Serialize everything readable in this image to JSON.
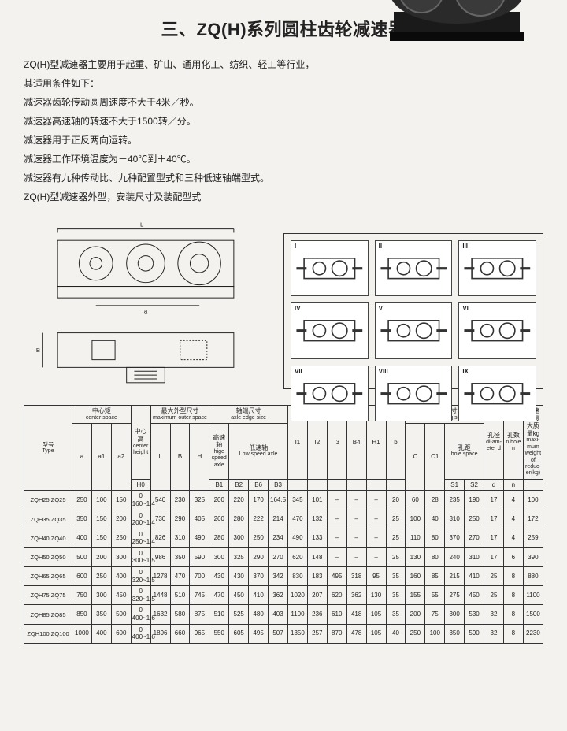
{
  "title": "三、ZQ(H)系列圆柱齿轮减速器",
  "intro": [
    "ZQ(H)型减速器主要用于起重、矿山、通用化工、纺织、轻工等行业，",
    "其适用条件如下：",
    "减速器齿轮传动圆周速度不大于4米／秒。",
    "减速器高速轴的转速不大于1500转／分。",
    "减速器用于正反两向运转。",
    "减速器工作环境温度为－40℃到＋40℃。",
    "减速器有九种传动比、九种配置型式和三种低速轴端型式。",
    "ZQ(H)型减速器外型，安装尺寸及装配型式"
  ],
  "config_labels": [
    "I",
    "II",
    "III",
    "IV",
    "V",
    "VI",
    "VII",
    "VIII",
    "IX"
  ],
  "headers": {
    "type": {
      "zh": "型号",
      "en": "Type"
    },
    "center_space": {
      "zh": "中心矩",
      "en": "center space"
    },
    "center_height": {
      "zh": "中心高",
      "en": "center height"
    },
    "max_outer": {
      "zh": "最大外型尺寸",
      "en": "maximum outer space"
    },
    "axle_edge": {
      "zh": "轴端尺寸",
      "en": "axle edge size"
    },
    "hige_axle": {
      "zh": "高速轴",
      "en": "hige speed axle"
    },
    "low_axle": {
      "zh": "低速轴",
      "en": "Low speed axle"
    },
    "assembling": {
      "zh": "安装尺寸",
      "en": "assembling size"
    },
    "hole_space": {
      "zh": "孔距",
      "en": "hole space"
    },
    "hole_dia": {
      "zh": "孔径",
      "en": "di-am-eter d"
    },
    "hole_n": {
      "zh": "孔数",
      "en": "n hole n"
    },
    "weight": {
      "zh": "减速器最大质量kg",
      "en": "maxi-mum weight of reduc-er(kg)"
    },
    "sub": [
      "a",
      "a1",
      "a2",
      "H0",
      "L",
      "B",
      "H",
      "B1",
      "B2",
      "B6",
      "B3",
      "I1",
      "I2",
      "I3",
      "B4",
      "H1",
      "b",
      "C",
      "C1",
      "S1",
      "S2",
      "d",
      "n",
      "kg"
    ]
  },
  "rows": [
    {
      "type": "ZQH25 ZQ25",
      "a": "250",
      "a1": "100",
      "a2": "150",
      "H0": "0\n160~1.4",
      "L": "540",
      "B": "230",
      "H": "325",
      "B1": "200",
      "B2": "220",
      "B6": "170",
      "B3": "164.5",
      "I1": "345",
      "I2": "101",
      "I3": "–",
      "B4": "–",
      "H1": "–",
      "b": "20",
      "C": "60",
      "C1": "28",
      "S1": "235",
      "S2": "190",
      "d": "17",
      "n": "4",
      "kg": "100"
    },
    {
      "type": "ZQH35 ZQ35",
      "a": "350",
      "a1": "150",
      "a2": "200",
      "H0": "0\n200~1.4",
      "L": "730",
      "B": "290",
      "H": "405",
      "B1": "260",
      "B2": "280",
      "B6": "222",
      "B3": "214",
      "I1": "470",
      "I2": "132",
      "I3": "–",
      "B4": "–",
      "H1": "–",
      "b": "25",
      "C": "100",
      "C1": "40",
      "S1": "310",
      "S2": "250",
      "d": "17",
      "n": "4",
      "kg": "172"
    },
    {
      "type": "ZQH40 ZQ40",
      "a": "400",
      "a1": "150",
      "a2": "250",
      "H0": "0\n250~1.4",
      "L": "826",
      "B": "310",
      "H": "490",
      "B1": "280",
      "B2": "300",
      "B6": "250",
      "B3": "234",
      "I1": "490",
      "I2": "133",
      "I3": "–",
      "B4": "–",
      "H1": "–",
      "b": "25",
      "C": "110",
      "C1": "80",
      "S1": "370",
      "S2": "270",
      "d": "17",
      "n": "4",
      "kg": "259"
    },
    {
      "type": "ZQH50 ZQ50",
      "a": "500",
      "a1": "200",
      "a2": "300",
      "H0": "0\n300~1.5",
      "L": "986",
      "B": "350",
      "H": "590",
      "B1": "300",
      "B2": "325",
      "B6": "290",
      "B3": "270",
      "I1": "620",
      "I2": "148",
      "I3": "–",
      "B4": "–",
      "H1": "–",
      "b": "25",
      "C": "130",
      "C1": "80",
      "S1": "240",
      "S2": "310",
      "d": "17",
      "n": "6",
      "kg": "390"
    },
    {
      "type": "ZQH65 ZQ65",
      "a": "600",
      "a1": "250",
      "a2": "400",
      "H0": "0\n320~1.5",
      "L": "1278",
      "B": "470",
      "H": "700",
      "B1": "430",
      "B2": "430",
      "B6": "370",
      "B3": "342",
      "I1": "830",
      "I2": "183",
      "I3": "495",
      "B4": "318",
      "H1": "95",
      "b": "35",
      "C": "160",
      "C1": "85",
      "S1": "215",
      "S2": "410",
      "d": "25",
      "n": "8",
      "kg": "880"
    },
    {
      "type": "ZQH75 ZQ75",
      "a": "750",
      "a1": "300",
      "a2": "450",
      "H0": "0\n320~1.5",
      "L": "1448",
      "B": "510",
      "H": "745",
      "B1": "470",
      "B2": "450",
      "B6": "410",
      "B3": "362",
      "I1": "1020",
      "I2": "207",
      "I3": "620",
      "B4": "362",
      "H1": "130",
      "b": "35",
      "C": "155",
      "C1": "55",
      "S1": "275",
      "S2": "450",
      "d": "25",
      "n": "8",
      "kg": "1100"
    },
    {
      "type": "ZQH85 ZQ85",
      "a": "850",
      "a1": "350",
      "a2": "500",
      "H0": "0\n400~1.6",
      "L": "1632",
      "B": "580",
      "H": "875",
      "B1": "510",
      "B2": "525",
      "B6": "480",
      "B3": "403",
      "I1": "1100",
      "I2": "236",
      "I3": "610",
      "B4": "418",
      "H1": "105",
      "b": "35",
      "C": "200",
      "C1": "75",
      "S1": "300",
      "S2": "530",
      "d": "32",
      "n": "8",
      "kg": "1500"
    },
    {
      "type": "ZQH100 ZQ100",
      "a": "1000",
      "a1": "400",
      "a2": "600",
      "H0": "0\n400~1.6",
      "L": "1896",
      "B": "660",
      "H": "965",
      "B1": "550",
      "B2": "605",
      "B6": "495",
      "B3": "507",
      "I1": "1350",
      "I2": "257",
      "I3": "870",
      "B4": "478",
      "H1": "105",
      "b": "40",
      "C": "250",
      "C1": "100",
      "S1": "350",
      "S2": "590",
      "d": "32",
      "n": "8",
      "kg": "2230"
    }
  ],
  "colors": {
    "bg": "#f4f2ef",
    "line": "#333333",
    "photo_dark": "#1a1a1a",
    "photo_mid": "#555555"
  }
}
